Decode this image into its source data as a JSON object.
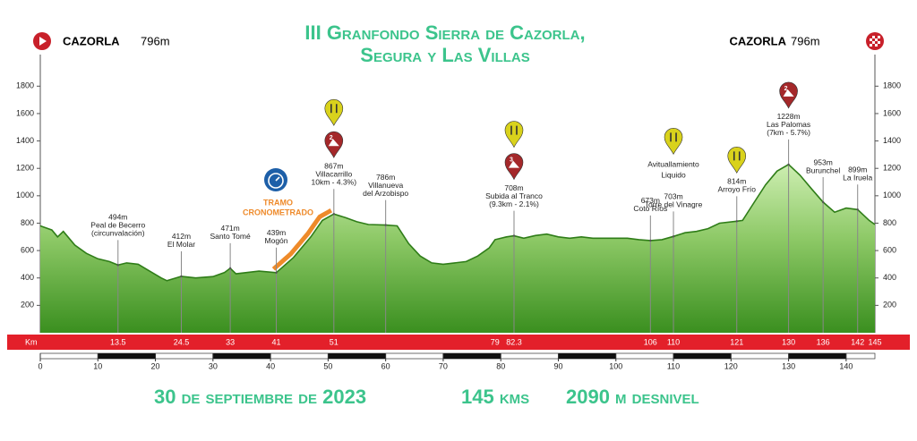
{
  "title_lines": [
    "III Granfondo Sierra de Cazorla,",
    "Segura y Las Villas"
  ],
  "start": {
    "name": "CAZORLA",
    "elev": "796m"
  },
  "finish": {
    "name": "CAZORLA",
    "elev": "796m"
  },
  "chart_data": {
    "type": "area",
    "x": [
      0,
      2,
      3,
      4,
      6,
      8,
      10,
      12,
      13.5,
      15,
      17,
      19,
      21,
      22,
      24.5,
      27,
      30,
      32,
      33,
      34,
      36,
      38,
      41,
      44,
      47,
      49,
      51,
      53,
      55,
      57,
      60,
      62,
      64,
      66,
      68,
      70,
      72,
      74,
      76,
      78,
      79,
      81,
      82.3,
      84,
      86,
      88,
      90,
      92,
      94,
      96,
      98,
      100,
      102,
      104,
      106,
      108,
      110,
      112,
      114,
      116,
      118,
      121,
      122,
      124,
      126,
      128,
      130,
      132,
      134,
      136,
      138,
      140,
      142,
      144,
      145
    ],
    "values": [
      780,
      750,
      700,
      740,
      640,
      580,
      540,
      520,
      494,
      510,
      500,
      450,
      400,
      380,
      412,
      400,
      410,
      440,
      471,
      430,
      440,
      450,
      439,
      550,
      700,
      820,
      867,
      840,
      810,
      790,
      786,
      780,
      650,
      560,
      510,
      500,
      510,
      520,
      560,
      620,
      680,
      700,
      708,
      690,
      710,
      720,
      700,
      690,
      700,
      690,
      690,
      690,
      690,
      680,
      673,
      680,
      703,
      730,
      740,
      760,
      800,
      814,
      820,
      950,
      1080,
      1180,
      1228,
      1150,
      1050,
      953,
      880,
      910,
      899,
      820,
      790
    ],
    "color": "#2f7d18",
    "xlim": [
      0,
      145
    ],
    "ylim": [
      0,
      1900
    ],
    "xticks": [
      0,
      10,
      20,
      30,
      40,
      50,
      60,
      70,
      80,
      90,
      100,
      110,
      120,
      130,
      140
    ],
    "yticks": [
      200,
      400,
      600,
      800,
      1000,
      1200,
      1400,
      1600,
      1800
    ],
    "km_label": "Km",
    "km_marks": [
      13.5,
      24.5,
      33,
      41,
      51,
      79,
      82.3,
      106,
      110,
      121,
      130,
      136,
      142,
      145
    ],
    "places": [
      {
        "km": 13.5,
        "elev": 494,
        "elev_label": "494m",
        "lines": [
          "Peal de Becerro",
          "(circunvalación)"
        ]
      },
      {
        "km": 24.5,
        "elev": 412,
        "elev_label": "412m",
        "lines": [
          "El Molar"
        ]
      },
      {
        "km": 33,
        "elev": 471,
        "elev_label": "471m",
        "lines": [
          "Santo Tomé"
        ]
      },
      {
        "km": 41,
        "elev": 439,
        "elev_label": "439m",
        "lines": [
          "Mogón"
        ]
      },
      {
        "km": 51,
        "elev": 867,
        "elev_label": "867m",
        "lines": [
          "Villacarrillo",
          "10km - 4.3%)"
        ],
        "climb": "2",
        "feed": true
      },
      {
        "km": 60,
        "elev": 786,
        "elev_label": "786m",
        "lines": [
          "Villanueva",
          "del Arzobispo"
        ]
      },
      {
        "km": 82.3,
        "elev": 708,
        "elev_label": "708m",
        "lines": [
          "Subida al Tranco",
          "(9.3km - 2.1%)"
        ],
        "climb": "3",
        "feed": true
      },
      {
        "km": 106,
        "elev": 673,
        "elev_label": "673m",
        "lines": [
          "Coto Ríos"
        ]
      },
      {
        "km": 110,
        "elev": 703,
        "elev_label": "703m",
        "lines": [
          "Torre del Vinagre"
        ],
        "note": [
          "Avituallamiento",
          "Liquido"
        ],
        "feed": true
      },
      {
        "km": 121,
        "elev": 814,
        "elev_label": "814m",
        "lines": [
          "Arroyo Frío"
        ],
        "feed": true
      },
      {
        "km": 130,
        "elev": 1228,
        "elev_label": "1228m",
        "lines": [
          "Las Palomas",
          "(7km - 5.7%)"
        ],
        "climb": "2"
      },
      {
        "km": 136,
        "elev": 953,
        "elev_label": "953m",
        "lines": [
          "Burunchel"
        ]
      },
      {
        "km": 142,
        "elev": 899,
        "elev_label": "899m",
        "lines": [
          "La Iruela"
        ]
      }
    ],
    "time_trial": {
      "from": 41,
      "to": 51,
      "color": "#ee8a2a",
      "lines": [
        "TRAMO",
        "CRONOMETRADO"
      ]
    }
  },
  "footer": [
    "30 de septiembre de 2023",
    "145 kms",
    "2090 m desnivel"
  ]
}
